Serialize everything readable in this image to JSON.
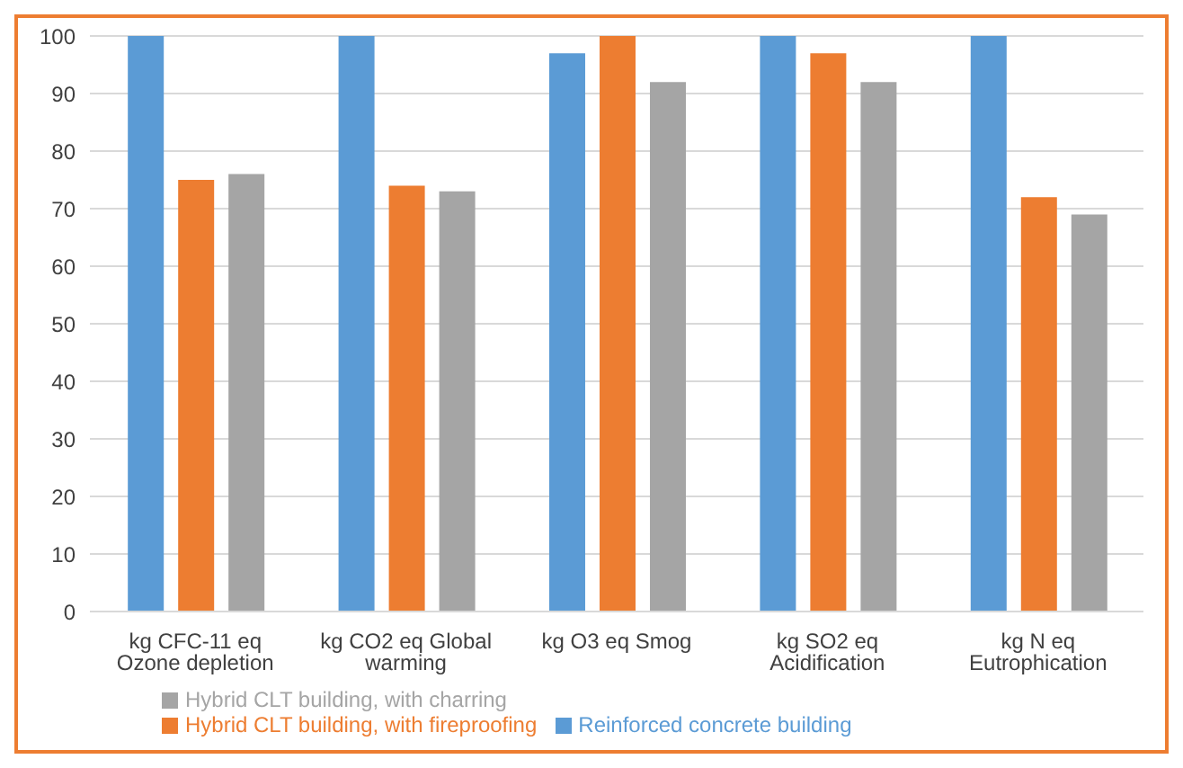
{
  "chart_data": {
    "type": "bar",
    "categories": [
      "kg CFC-11 eq Ozone depletion",
      "kg CO2 eq Global warming",
      "kg O3 eq Smog",
      "kg SO2 eq Acidification",
      "kg N eq Eutrophication"
    ],
    "series": [
      {
        "name": "Reinforced concrete building",
        "color": "#5b9bd5",
        "values": [
          100,
          100,
          97,
          100,
          100
        ]
      },
      {
        "name": "Hybrid CLT building, with fireproofing",
        "color": "#ed7d31",
        "values": [
          75,
          74,
          100,
          97,
          72
        ]
      },
      {
        "name": "Hybrid CLT building, with charring",
        "color": "#a5a5a5",
        "values": [
          76,
          73,
          92,
          92,
          69
        ]
      }
    ],
    "ylim": [
      0,
      100
    ],
    "yticks": [
      0,
      10,
      20,
      30,
      40,
      50,
      60,
      70,
      80,
      90,
      100
    ],
    "grid": "y",
    "legend": "bottom"
  }
}
